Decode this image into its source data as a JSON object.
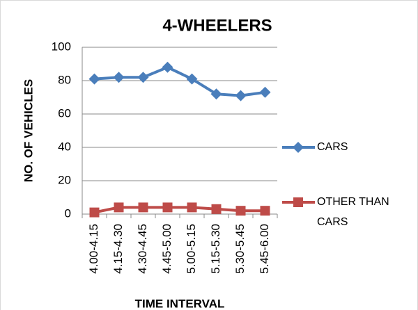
{
  "chart_data": {
    "type": "line",
    "title": "4-WHEELERS",
    "x_label": "TIME INTERVAL",
    "y_label": "NO. OF VEHICLES",
    "categories": [
      "4.00-4.15",
      "4.15-4.30",
      "4.30-4.45",
      "4.45-5.00",
      "5.00-5.15",
      "5.15-5.30",
      "5.30-5.45",
      "5.45-6.00"
    ],
    "series": [
      {
        "name": "CARS",
        "color": "#4a7ebb",
        "marker": "diamond",
        "values": [
          81,
          82,
          82,
          88,
          81,
          72,
          71,
          73
        ]
      },
      {
        "name": "OTHER THAN CARS",
        "color": "#be4b48",
        "marker": "square",
        "values": [
          1,
          4,
          4,
          4,
          4,
          3,
          2,
          2
        ]
      }
    ],
    "ylim": [
      0,
      100
    ],
    "yticks": [
      0,
      20,
      40,
      60,
      80,
      100
    ],
    "grid": true,
    "legend": "right"
  }
}
